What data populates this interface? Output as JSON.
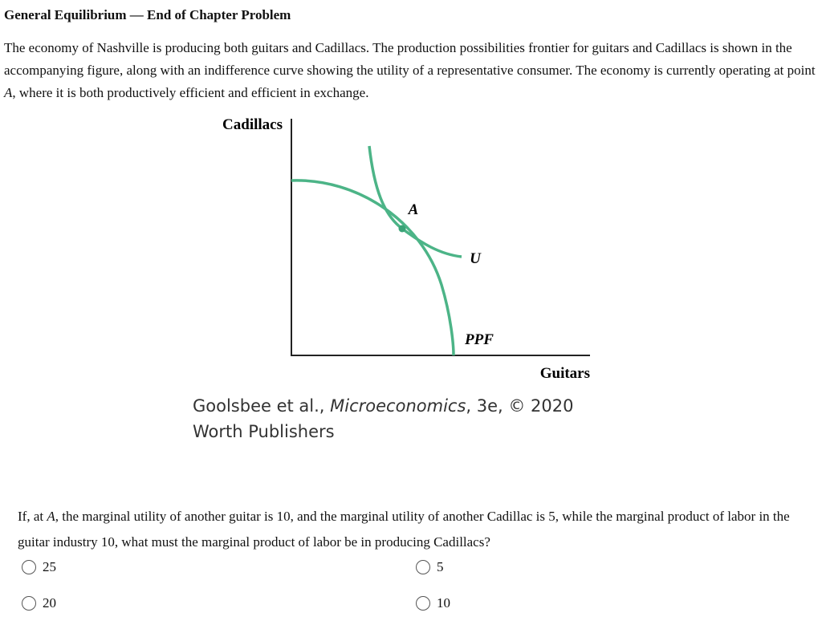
{
  "header": {
    "title": "General Equilibrium — End of Chapter Problem"
  },
  "intro": {
    "text_before": "The economy of Nashville is producing both guitars and Cadillacs. The production possibilities frontier for guitars and Cadillacs is shown in the accompanying figure, along with an indifference curve showing the utility of a representative consumer. The economy is currently operating at point ",
    "point": "A",
    "text_after": ", where it is both productively efficient and efficient in exchange."
  },
  "figure": {
    "y_axis_label": "Cadillacs",
    "x_axis_label": "Guitars",
    "point_label": "A",
    "curve_labels": [
      "U",
      "PPF"
    ]
  },
  "caption": {
    "authors": "Goolsbee et al., ",
    "book": "Microeconomics",
    "edition": ", 3e, © 2020 Worth Publishers"
  },
  "question": {
    "text_before": "If, at ",
    "point": "A",
    "text_after": ", the marginal utility of another guitar is 10, and the marginal utility of another Cadillac is 5, while the marginal product of labor in the guitar industry 10, what must the marginal product of labor be in producing Cadillacs?"
  },
  "options": [
    "25",
    "5",
    "20",
    "10"
  ]
}
